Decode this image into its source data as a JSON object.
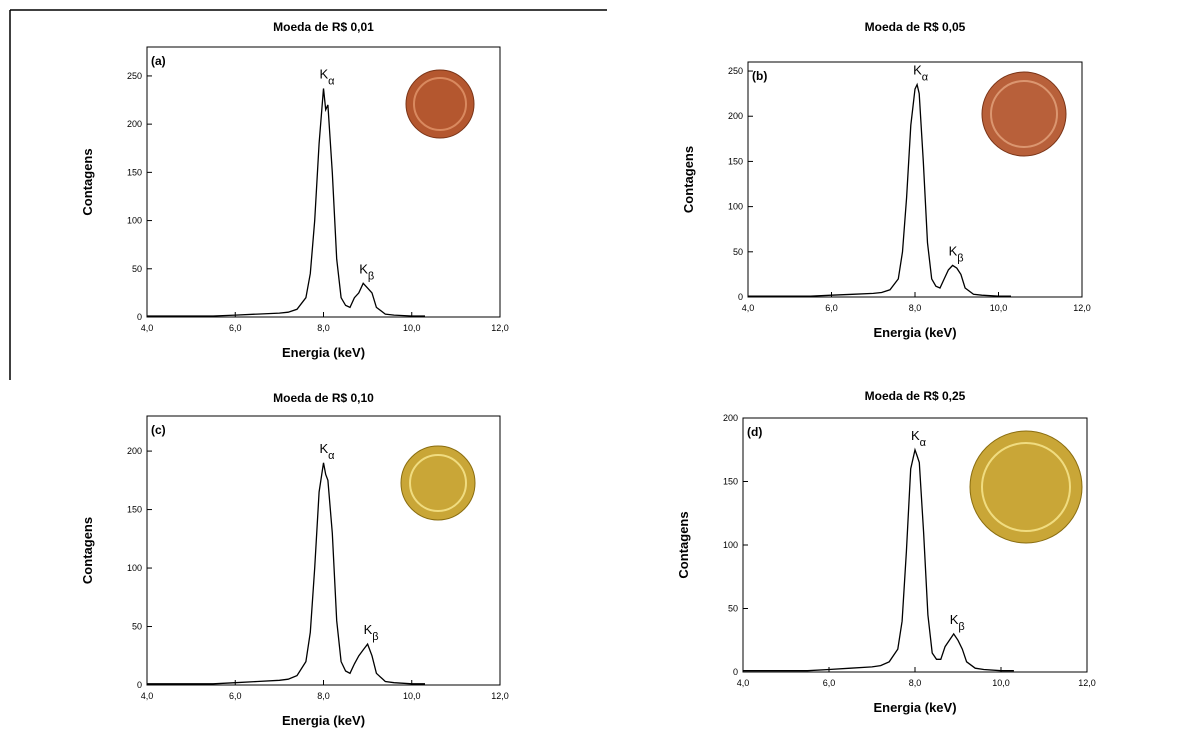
{
  "chart_data": [
    {
      "type": "line",
      "title": "Moeda de R$ 0,01",
      "panel": "(a)",
      "xlabel": "Energia (keV)",
      "ylabel": "Contagens",
      "color": "#000000",
      "peak_labels": [
        {
          "text": "K",
          "subscript": "α"
        },
        {
          "text": "K",
          "subscript": "β"
        }
      ],
      "x": [
        4.0,
        4.5,
        5.0,
        5.5,
        6.0,
        6.5,
        7.0,
        7.2,
        7.4,
        7.6,
        7.7,
        7.8,
        7.9,
        8.0,
        8.05,
        8.1,
        8.2,
        8.3,
        8.4,
        8.5,
        8.6,
        8.7,
        8.8,
        8.9,
        9.0,
        9.1,
        9.2,
        9.4,
        9.6,
        10.0,
        10.3
      ],
      "values": [
        1,
        1,
        1,
        1,
        2,
        3,
        4,
        5,
        8,
        20,
        45,
        100,
        180,
        237,
        215,
        220,
        150,
        60,
        20,
        12,
        10,
        20,
        25,
        35,
        30,
        25,
        10,
        3,
        2,
        1,
        1
      ],
      "xlim": [
        4,
        12
      ],
      "ylim": [
        0,
        280
      ],
      "xticks": [
        {
          "value": 4,
          "label": "4,0"
        },
        {
          "value": 6,
          "label": "6,0"
        },
        {
          "value": 8,
          "label": "8,0"
        },
        {
          "value": 10,
          "label": "10,0"
        },
        {
          "value": 12,
          "label": "12,0"
        }
      ],
      "yticks": [
        0,
        50,
        100,
        150,
        200,
        250
      ]
    },
    {
      "type": "line",
      "title": "Moeda de R$ 0,05",
      "panel": "(b)",
      "xlabel": "Energia (keV)",
      "ylabel": "Contagens",
      "color": "#000000",
      "peak_labels": [
        {
          "text": "K",
          "subscript": "α"
        },
        {
          "text": "K",
          "subscript": "β"
        }
      ],
      "x": [
        4.0,
        4.5,
        5.0,
        5.5,
        6.0,
        6.5,
        7.0,
        7.2,
        7.4,
        7.6,
        7.7,
        7.8,
        7.9,
        8.0,
        8.05,
        8.1,
        8.2,
        8.3,
        8.4,
        8.5,
        8.6,
        8.7,
        8.8,
        8.9,
        9.0,
        9.1,
        9.2,
        9.4,
        9.6,
        10.0,
        10.3
      ],
      "values": [
        1,
        1,
        1,
        1,
        2,
        3,
        4,
        5,
        8,
        20,
        50,
        110,
        190,
        230,
        235,
        225,
        150,
        60,
        20,
        12,
        10,
        20,
        30,
        35,
        32,
        25,
        10,
        3,
        2,
        1,
        1
      ],
      "xlim": [
        4,
        12
      ],
      "ylim": [
        0,
        260
      ],
      "xticks": [
        {
          "value": 4,
          "label": "4,0"
        },
        {
          "value": 6,
          "label": "6,0"
        },
        {
          "value": 8,
          "label": "8,0"
        },
        {
          "value": 10,
          "label": "10,0"
        },
        {
          "value": 12,
          "label": "12,0"
        }
      ],
      "yticks": [
        0,
        50,
        100,
        150,
        200,
        250
      ]
    },
    {
      "type": "line",
      "title": "Moeda de R$ 0,10",
      "panel": "(c)",
      "xlabel": "Energia (keV)",
      "ylabel": "Contagens",
      "color": "#000000",
      "peak_labels": [
        {
          "text": "K",
          "subscript": "α"
        },
        {
          "text": "K",
          "subscript": "β"
        }
      ],
      "x": [
        4.0,
        4.5,
        5.0,
        5.5,
        6.0,
        6.5,
        7.0,
        7.2,
        7.4,
        7.6,
        7.7,
        7.8,
        7.9,
        8.0,
        8.05,
        8.1,
        8.2,
        8.3,
        8.4,
        8.5,
        8.6,
        8.7,
        8.8,
        8.9,
        9.0,
        9.1,
        9.2,
        9.4,
        9.6,
        10.0,
        10.3
      ],
      "values": [
        1,
        1,
        1,
        1,
        2,
        3,
        4,
        5,
        8,
        20,
        45,
        100,
        165,
        190,
        180,
        175,
        130,
        55,
        20,
        12,
        10,
        18,
        25,
        30,
        35,
        25,
        10,
        3,
        2,
        1,
        1
      ],
      "xlim": [
        4,
        12
      ],
      "ylim": [
        0,
        230
      ],
      "xticks": [
        {
          "value": 4,
          "label": "4,0"
        },
        {
          "value": 6,
          "label": "6,0"
        },
        {
          "value": 8,
          "label": "8,0"
        },
        {
          "value": 10,
          "label": "10,0"
        },
        {
          "value": 12,
          "label": "12,0"
        }
      ],
      "yticks": [
        0,
        50,
        100,
        150,
        200
      ]
    },
    {
      "type": "line",
      "title": "Moeda de R$ 0,25",
      "panel": "(d)",
      "xlabel": "Energia (keV)",
      "ylabel": "Contagens",
      "color": "#000000",
      "peak_labels": [
        {
          "text": "K",
          "subscript": "α"
        },
        {
          "text": "K",
          "subscript": "β"
        }
      ],
      "x": [
        4.0,
        4.5,
        5.0,
        5.5,
        6.0,
        6.5,
        7.0,
        7.2,
        7.4,
        7.6,
        7.7,
        7.8,
        7.9,
        8.0,
        8.05,
        8.1,
        8.2,
        8.3,
        8.4,
        8.5,
        8.6,
        8.7,
        8.8,
        8.9,
        9.0,
        9.1,
        9.2,
        9.4,
        9.6,
        10.0,
        10.3
      ],
      "values": [
        1,
        1,
        1,
        1,
        2,
        3,
        4,
        5,
        8,
        18,
        40,
        95,
        160,
        175,
        170,
        165,
        110,
        45,
        15,
        10,
        10,
        20,
        25,
        30,
        25,
        18,
        8,
        3,
        2,
        1,
        1
      ],
      "xlim": [
        4,
        12
      ],
      "ylim": [
        0,
        200
      ],
      "xticks": [
        {
          "value": 4,
          "label": "4,0"
        },
        {
          "value": 6,
          "label": "6,0"
        },
        {
          "value": 8,
          "label": "8,0"
        },
        {
          "value": 10,
          "label": "10,0"
        },
        {
          "value": 12,
          "label": "12,0"
        }
      ],
      "yticks": [
        0,
        50,
        100,
        150,
        200
      ]
    }
  ]
}
